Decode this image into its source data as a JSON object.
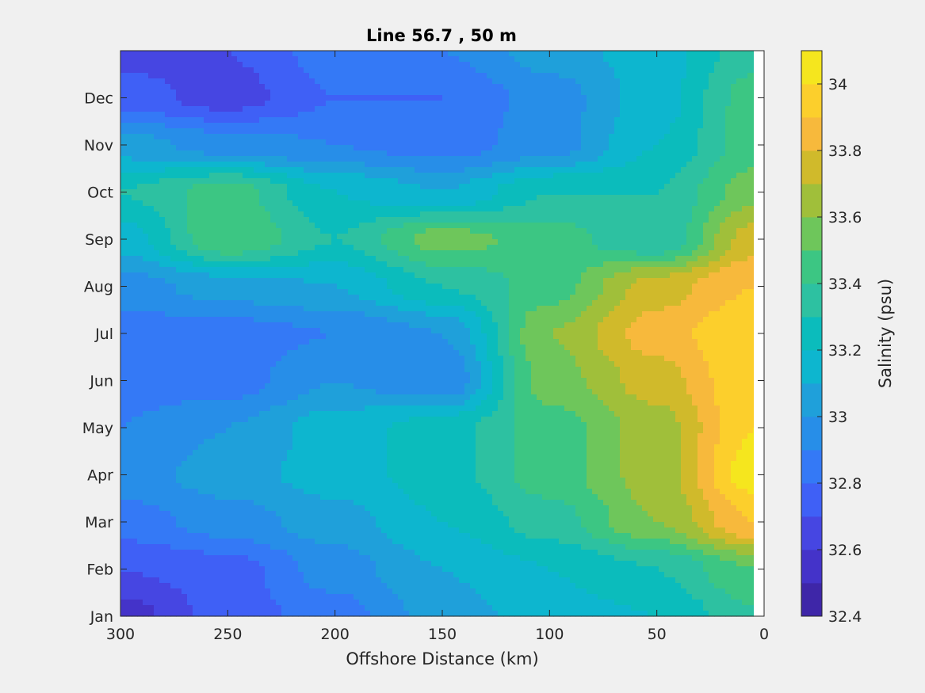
{
  "chart_data": {
    "type": "heatmap",
    "subtype": "filled-contour",
    "title": "Line 56.7 , 50 m",
    "xlabel": "Offshore Distance (km)",
    "ylabel": "",
    "xlim": [
      300,
      0
    ],
    "x_reversed": true,
    "x_ticks": [
      300,
      250,
      200,
      150,
      100,
      50,
      0
    ],
    "x_data_extent": [
      300,
      5
    ],
    "y_ticks": [
      "Jan",
      "Feb",
      "Mar",
      "Apr",
      "May",
      "Jun",
      "Jul",
      "Aug",
      "Sep",
      "Oct",
      "Nov",
      "Dec"
    ],
    "y_month_range": [
      0,
      12
    ],
    "colorbar": {
      "label": "Salinity (psu)",
      "limits": [
        32.4,
        34.1
      ],
      "level_step": 0.1,
      "tick_values": [
        32.4,
        32.6,
        32.8,
        33,
        33.2,
        33.4,
        33.6,
        33.8,
        34
      ],
      "tick_labels": [
        "32.4",
        "32.6",
        "32.8",
        "33",
        "33.2",
        "33.4",
        "33.6",
        "33.8",
        "34"
      ],
      "colors": [
        "#3e26a8",
        "#4433c9",
        "#4646e2",
        "#3f60f6",
        "#3479f6",
        "#278ee8",
        "#1fa0da",
        "#0db6cf",
        "#0bbcbc",
        "#2dc1a1",
        "#3cc683",
        "#6ec65b",
        "#a0bf3a",
        "#d0ba2b",
        "#f7b93c",
        "#fccf2c",
        "#f5e61e"
      ]
    },
    "grid": false,
    "legend": "none",
    "salinity_grid": {
      "x": [
        300,
        250,
        200,
        150,
        100,
        50,
        5
      ],
      "months": [
        0,
        1,
        2,
        3,
        4,
        5,
        6,
        7,
        8,
        9,
        10,
        11,
        12
      ],
      "values": [
        [
          32.55,
          32.75,
          32.85,
          33.05,
          33.15,
          33.2,
          33.38
        ],
        [
          32.7,
          32.75,
          32.95,
          33.1,
          33.2,
          33.3,
          33.5
        ],
        [
          32.85,
          32.95,
          33.05,
          33.2,
          33.35,
          33.6,
          33.9
        ],
        [
          32.95,
          33.05,
          33.15,
          33.25,
          33.45,
          33.65,
          34.05
        ],
        [
          32.9,
          33.0,
          33.15,
          33.25,
          33.45,
          33.65,
          34.0
        ],
        [
          32.85,
          32.85,
          33.0,
          32.9,
          33.55,
          33.75,
          34.0
        ],
        [
          32.85,
          32.85,
          32.9,
          33.0,
          33.6,
          33.85,
          34.0
        ],
        [
          32.95,
          33.05,
          33.1,
          33.3,
          33.45,
          33.75,
          33.9
        ],
        [
          33.15,
          33.5,
          33.3,
          33.55,
          33.45,
          33.3,
          33.75
        ],
        [
          33.3,
          33.45,
          33.2,
          33.1,
          33.3,
          33.3,
          33.55
        ],
        [
          33.05,
          32.95,
          32.9,
          32.85,
          32.95,
          33.2,
          33.45
        ],
        [
          32.75,
          32.65,
          32.8,
          32.8,
          32.95,
          33.15,
          33.45
        ],
        [
          32.65,
          32.7,
          32.85,
          32.9,
          33.05,
          33.15,
          33.35
        ]
      ]
    }
  }
}
